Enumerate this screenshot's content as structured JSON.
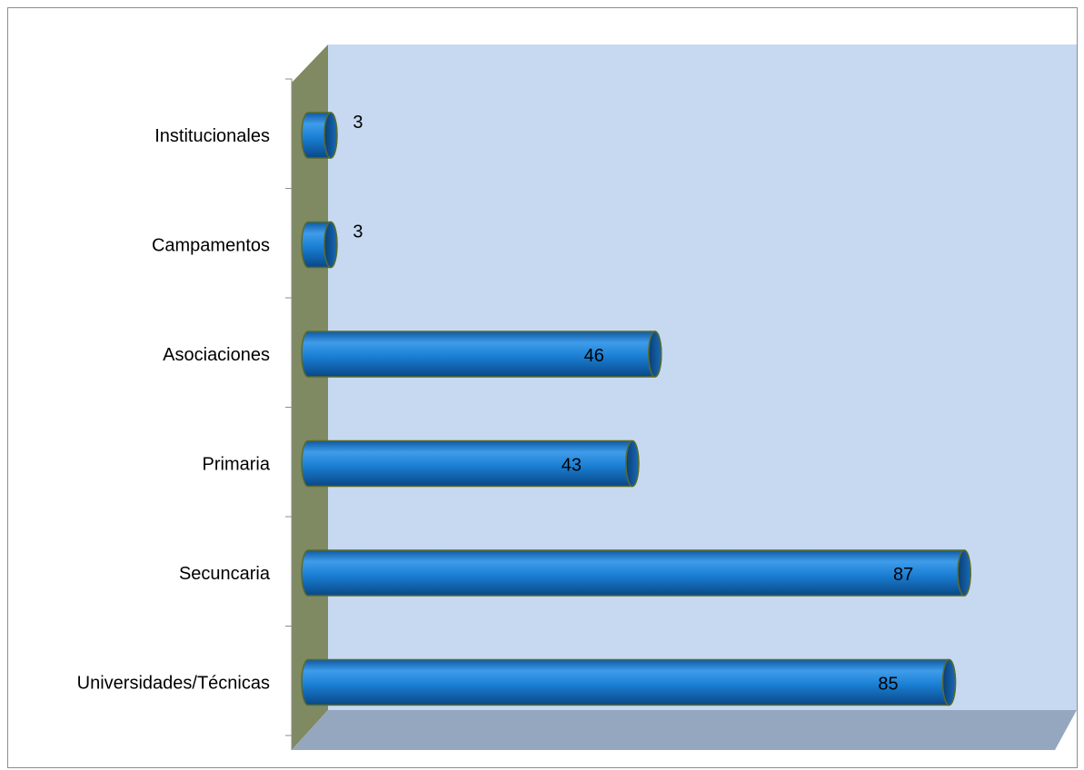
{
  "chart_data": {
    "type": "bar",
    "orientation": "horizontal",
    "style": "3d-cylinder",
    "title": "",
    "xlabel": "",
    "ylabel": "",
    "categories": [
      "Institucionales",
      "Campamentos",
      "Asociaciones",
      "Primaria",
      "Secuncaria",
      "Universidades/Técnicas"
    ],
    "values": [
      3,
      3,
      46,
      43,
      87,
      85
    ],
    "value_labels": [
      "3",
      "3",
      "46",
      "43",
      "87",
      "85"
    ],
    "xlim": [
      0,
      100
    ],
    "grid": false,
    "legend": "none",
    "colors": {
      "bar": "#1a7fd4",
      "bar_dark": "#0d4f8f",
      "bar_light": "#4aa3ef",
      "bar_outline": "#5a6b2a",
      "back_wall": "#c6d9f1",
      "side_wall": "#7f8a62",
      "floor": "#95a7bf"
    }
  }
}
